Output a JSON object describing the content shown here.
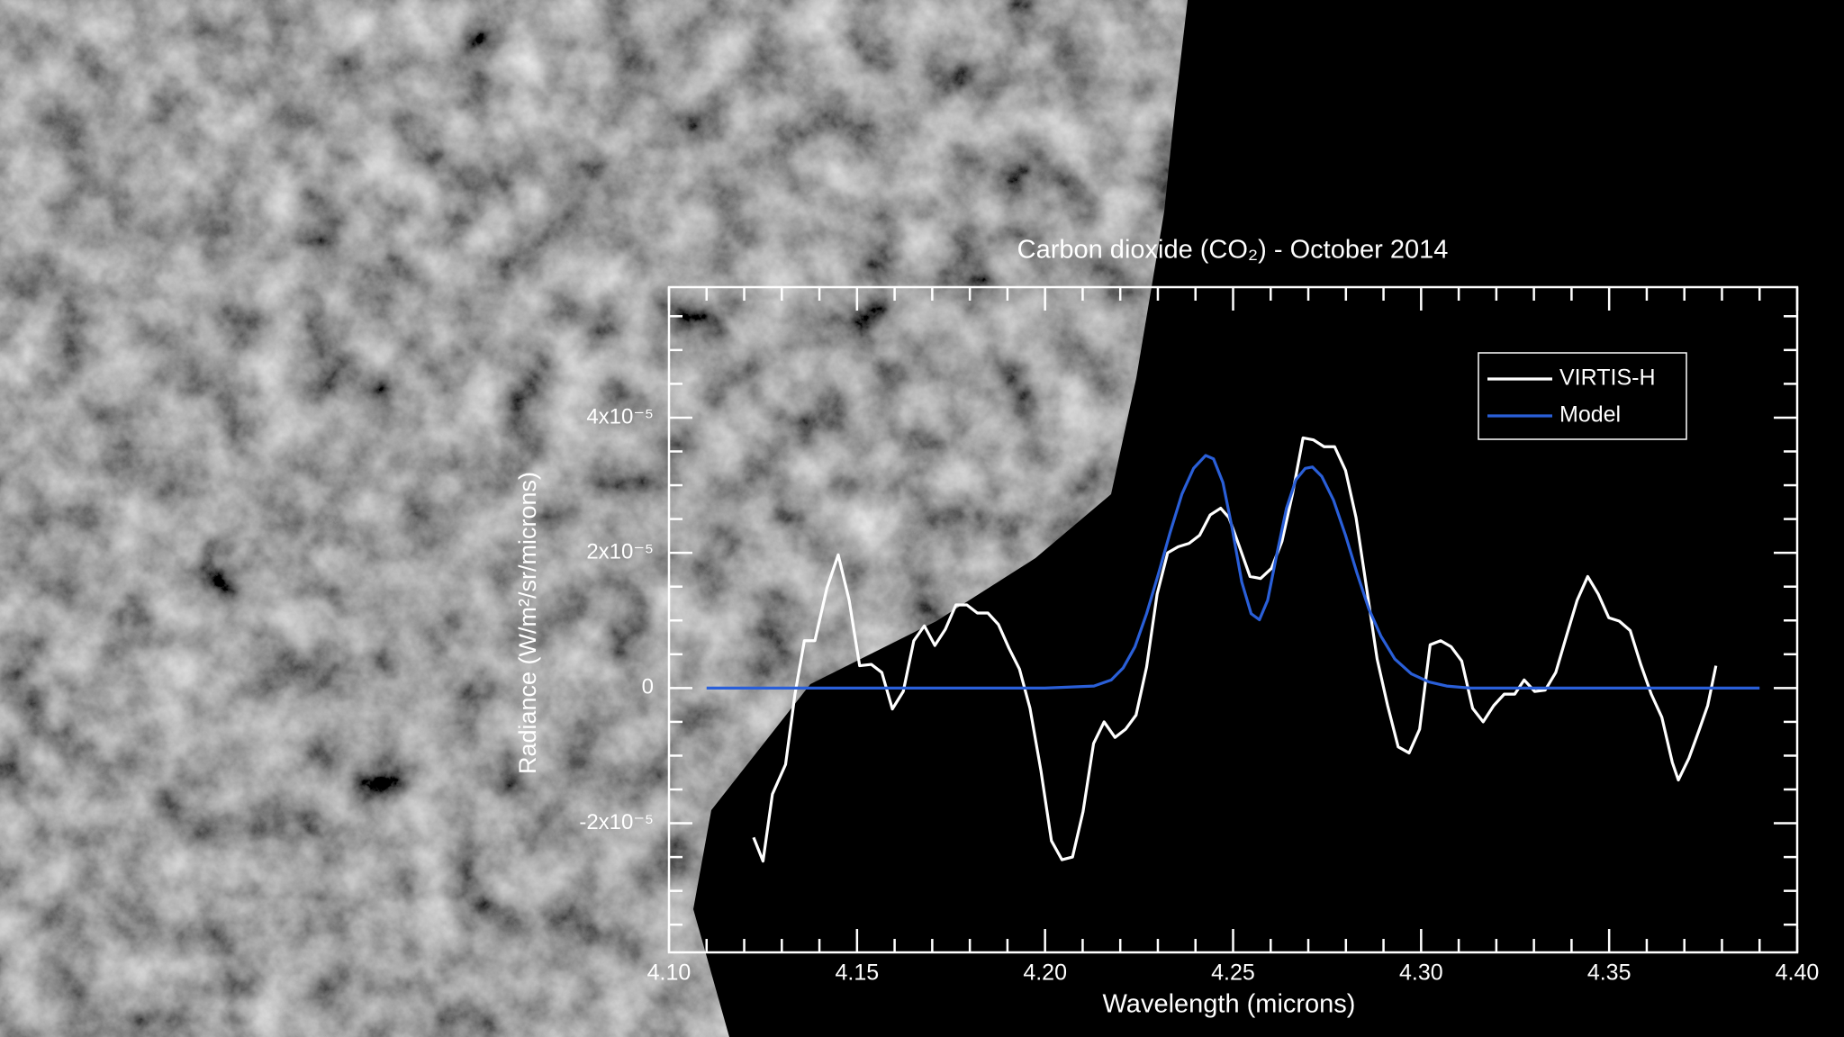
{
  "chart_data": {
    "type": "line",
    "title": "Carbon dioxide (CO₂) - October 2014",
    "x_label": "Wavelength (microns)",
    "y_label": "Radiance (W/m²/sr/microns)",
    "xlim": [
      4.1,
      4.4
    ],
    "ylim": [
      -3.91e-05,
      5.93e-05
    ],
    "xticks": [
      {
        "value": 4.1,
        "label": "4.10"
      },
      {
        "value": 4.15,
        "label": "4.15"
      },
      {
        "value": 4.2,
        "label": "4.20"
      },
      {
        "value": 4.25,
        "label": "4.25"
      },
      {
        "value": 4.3,
        "label": "4.30"
      },
      {
        "value": 4.35,
        "label": "4.35"
      },
      {
        "value": 4.4,
        "label": "4.40"
      }
    ],
    "xminorticks": [
      4.11,
      4.12,
      4.13,
      4.14,
      4.16,
      4.17,
      4.18,
      4.19,
      4.21,
      4.22,
      4.23,
      4.24,
      4.26,
      4.27,
      4.28,
      4.29,
      4.31,
      4.32,
      4.33,
      4.34,
      4.36,
      4.37,
      4.38,
      4.39
    ],
    "yticks": [
      {
        "value": -2e-05,
        "label": "-2x10⁻⁵"
      },
      0,
      {
        "value": 2e-05,
        "label": "2x10⁻⁵"
      },
      {
        "value": 4e-05,
        "label": "4x10⁻⁵"
      }
    ],
    "yminorticks": [
      -3.5e-05,
      -3e-05,
      -2.5e-05,
      -1.5e-05,
      -1e-05,
      -5e-06,
      5e-06,
      1e-05,
      1.5e-05,
      2.5e-05,
      3e-05,
      3.5e-05,
      4.5e-05,
      5e-05,
      5.5e-05
    ],
    "legend": "upper right",
    "series": [
      {
        "name": "VIRTIS-H",
        "color": "#ffffff",
        "x": [
          4.1225,
          4.125,
          4.1275,
          4.131,
          4.1335,
          4.136,
          4.1388,
          4.142,
          4.145,
          4.1479,
          4.1507,
          4.1538,
          4.1566,
          4.1594,
          4.1623,
          4.1651,
          4.1679,
          4.1707,
          4.1735,
          4.1763,
          4.1792,
          4.182,
          4.1848,
          4.1876,
          4.1904,
          4.1932,
          4.196,
          4.1989,
          4.2017,
          4.2045,
          4.2073,
          4.2101,
          4.2129,
          4.2157,
          4.2186,
          4.2214,
          4.2242,
          4.227,
          4.2298,
          4.2326,
          4.2354,
          4.2383,
          4.2411,
          4.2439,
          4.2467,
          4.2489,
          4.2517,
          4.2545,
          4.2573,
          4.2602,
          4.263,
          4.2658,
          4.2686,
          4.2714,
          4.2742,
          4.277,
          4.2799,
          4.2827,
          4.2855,
          4.2883,
          4.2911,
          4.2939,
          4.2968,
          4.2996,
          4.3024,
          4.3052,
          4.308,
          4.3108,
          4.3137,
          4.3165,
          4.3193,
          4.3221,
          4.3249,
          4.3274,
          4.3302,
          4.333,
          4.3358,
          4.3387,
          4.3415,
          4.3443,
          4.3471,
          4.3499,
          4.3527,
          4.3556,
          4.3584,
          4.3612,
          4.364,
          4.3668,
          4.3684,
          4.3712,
          4.374,
          4.3762,
          4.3784
        ],
        "values": [
          -2.21e-05,
          -2.56e-05,
          -1.57e-05,
          -1.13e-05,
          -9e-07,
          7e-06,
          7e-06,
          1.48e-05,
          1.97e-05,
          1.3e-05,
          3.3e-06,
          3.5e-06,
          2.3e-06,
          -3.1e-06,
          -5e-07,
          7e-06,
          9.2e-06,
          6.3e-06,
          8.7e-06,
          1.23e-05,
          1.23e-05,
          1.11e-05,
          1.11e-05,
          9.4e-06,
          5.9e-06,
          2.8e-06,
          -3e-06,
          -1.22e-05,
          -2.26e-05,
          -2.54e-05,
          -2.5e-05,
          -1.83e-05,
          -8.2e-06,
          -5e-06,
          -7.3e-06,
          -6.1e-06,
          -4e-06,
          3.1e-06,
          1.39e-05,
          2e-05,
          2.09e-05,
          2.14e-05,
          2.26e-05,
          2.56e-05,
          2.66e-05,
          2.52e-05,
          2.09e-05,
          1.65e-05,
          1.62e-05,
          1.77e-05,
          2.17e-05,
          2.87e-05,
          3.7e-05,
          3.67e-05,
          3.57e-05,
          3.57e-05,
          3.22e-05,
          2.52e-05,
          1.48e-05,
          4.3e-06,
          -2.6e-06,
          -8.7e-06,
          -9.6e-06,
          -6.1e-06,
          6.4e-06,
          7e-06,
          6.1e-06,
          4e-06,
          -3e-06,
          -5e-06,
          -2.6e-06,
          -9e-07,
          -9e-07,
          1.2e-06,
          -5e-07,
          -3e-07,
          2.3e-06,
          7.8e-06,
          1.3e-05,
          1.65e-05,
          1.39e-05,
          1.04e-05,
          9.9e-06,
          8.5e-06,
          3.5e-06,
          -9e-07,
          -4.3e-06,
          -1.1e-05,
          -1.36e-05,
          -1.04e-05,
          -6.1e-06,
          -2.6e-06,
          3.3e-06
        ]
      },
      {
        "name": "Model",
        "color": "#2a5fd8",
        "x": [
          4.11,
          4.15,
          4.2,
          4.213,
          4.2176,
          4.2208,
          4.2239,
          4.227,
          4.2302,
          4.2333,
          4.2364,
          4.2395,
          4.2427,
          4.2448,
          4.2473,
          4.2498,
          4.2523,
          4.2548,
          4.257,
          4.2592,
          4.2617,
          4.2642,
          4.2667,
          4.2692,
          4.2711,
          4.2736,
          4.2767,
          4.2799,
          4.283,
          4.2861,
          4.2893,
          4.293,
          4.2974,
          4.3021,
          4.3068,
          4.3131,
          4.33,
          4.39
        ],
        "values": [
          0,
          0,
          0,
          3e-07,
          1.2e-06,
          3e-06,
          6.1e-06,
          1.1e-05,
          1.7e-05,
          2.31e-05,
          2.87e-05,
          3.25e-05,
          3.44e-05,
          3.39e-05,
          3.04e-05,
          2.35e-05,
          1.57e-05,
          1.1e-05,
          1.01e-05,
          1.3e-05,
          2e-05,
          2.66e-05,
          3.08e-05,
          3.25e-05,
          3.27e-05,
          3.13e-05,
          2.78e-05,
          2.26e-05,
          1.69e-05,
          1.17e-05,
          7.7e-06,
          4.3e-06,
          2.1e-06,
          9e-07,
          3e-07,
          0,
          0,
          0
        ]
      }
    ]
  }
}
